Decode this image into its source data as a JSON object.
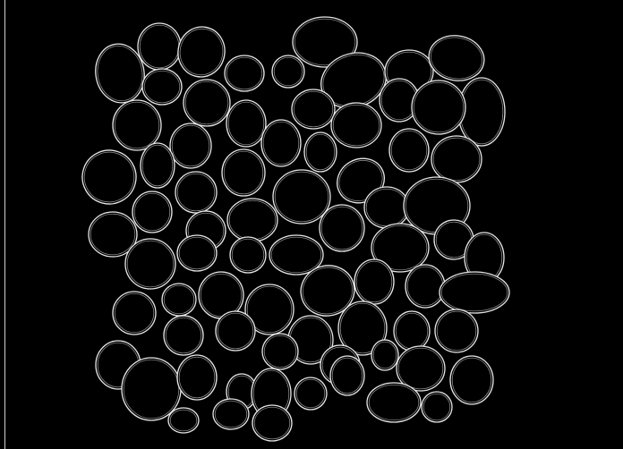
{
  "image": {
    "kind": "edge-detected pebble mosaic",
    "colors": {
      "background": "#000000",
      "edge": "#e8e8e8",
      "edge_secondary": "#9a9a9a"
    }
  }
}
